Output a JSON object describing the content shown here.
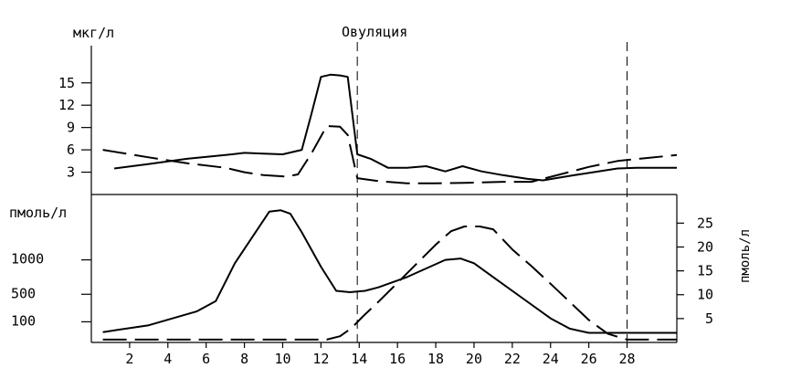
{
  "chart_data": [
    {
      "type": "line",
      "ylabel": "мкг/л",
      "annotation": "Овуляция",
      "xlim": [
        0,
        30.6
      ],
      "ylim": [
        0,
        20
      ],
      "yticks": [
        3,
        6,
        9,
        12,
        15
      ],
      "ovulation_day": 13.9,
      "vlines": [
        13.9,
        28
      ],
      "grid": false,
      "series": [
        {
          "style": "solid",
          "x": [
            1.2,
            3,
            5,
            7,
            8,
            9,
            10,
            11,
            11.5,
            12,
            12.5,
            13,
            13.4,
            13.9,
            14.6,
            15.5,
            16.5,
            17.5,
            18.5,
            19.4,
            20.4,
            21.5,
            22.8,
            23.6,
            25,
            26.5,
            27.5,
            28.5,
            29.5,
            30.6
          ],
          "y": [
            3.5,
            4.1,
            4.8,
            5.3,
            5.6,
            5.5,
            5.4,
            6,
            10.8,
            15.8,
            16.1,
            16,
            15.8,
            5.4,
            4.8,
            3.6,
            3.6,
            3.8,
            3.1,
            3.8,
            3.1,
            2.6,
            2.1,
            1.9,
            2.5,
            3.1,
            3.5,
            3.6,
            3.6,
            3.6
          ]
        },
        {
          "style": "dashed",
          "x": [
            0.6,
            3,
            5,
            7,
            8,
            9,
            10.2,
            10.8,
            11.5,
            12.3,
            13,
            13.4,
            13.9,
            15,
            16.5,
            18,
            20,
            21.5,
            23,
            24.5,
            26,
            27.5,
            29,
            30.6
          ],
          "y": [
            6,
            5,
            4.2,
            3.6,
            3,
            2.6,
            2.4,
            2.7,
            5.5,
            9.2,
            9.1,
            8,
            2.2,
            1.8,
            1.5,
            1.5,
            1.6,
            1.7,
            1.7,
            2.7,
            3.7,
            4.5,
            4.9,
            5.3
          ]
        }
      ]
    },
    {
      "type": "line",
      "ylabel": "пмоль/л",
      "ylabel_right": "пмоль/л",
      "xlim": [
        0,
        30.6
      ],
      "xticks": [
        2,
        4,
        6,
        8,
        10,
        12,
        14,
        16,
        18,
        20,
        22,
        24,
        26,
        28
      ],
      "ylim": [
        -200,
        1950
      ],
      "yticks": [
        100,
        500,
        1000
      ],
      "ylim_right": [
        0,
        31
      ],
      "yticks_right": [
        5,
        10,
        15,
        20,
        25
      ],
      "grid": false,
      "series": [
        {
          "axis": "left",
          "style": "solid",
          "x": [
            0.6,
            3,
            5.5,
            6.5,
            7.5,
            9.3,
            9.9,
            10.4,
            11,
            12,
            12.8,
            13.5,
            14.3,
            15,
            16.5,
            18.5,
            19.3,
            20,
            21,
            22.5,
            24,
            25,
            26,
            27,
            28,
            29,
            30.6
          ],
          "y": [
            -50,
            50,
            250,
            400,
            950,
            1700,
            1720,
            1670,
            1400,
            900,
            550,
            530,
            550,
            600,
            750,
            1000,
            1020,
            950,
            750,
            450,
            150,
            0,
            -60,
            -60,
            -60,
            -60,
            -60
          ]
        },
        {
          "axis": "right",
          "style": "dashed",
          "x": [
            0.6,
            3,
            6,
            9,
            11,
            12.3,
            13,
            13.6,
            14.2,
            15,
            16,
            17,
            18,
            18.8,
            19.5,
            20.3,
            21,
            22,
            23,
            24,
            25,
            26,
            27,
            28,
            29,
            30.6
          ],
          "y": [
            0.6,
            0.6,
            0.6,
            0.6,
            0.6,
            0.6,
            1.3,
            3,
            5.5,
            8.5,
            12.5,
            16.5,
            20.5,
            23.3,
            24.3,
            24.3,
            23.7,
            19.5,
            16,
            12.3,
            8.5,
            4.7,
            1.8,
            0.6,
            0.6,
            0.6
          ]
        }
      ]
    }
  ]
}
